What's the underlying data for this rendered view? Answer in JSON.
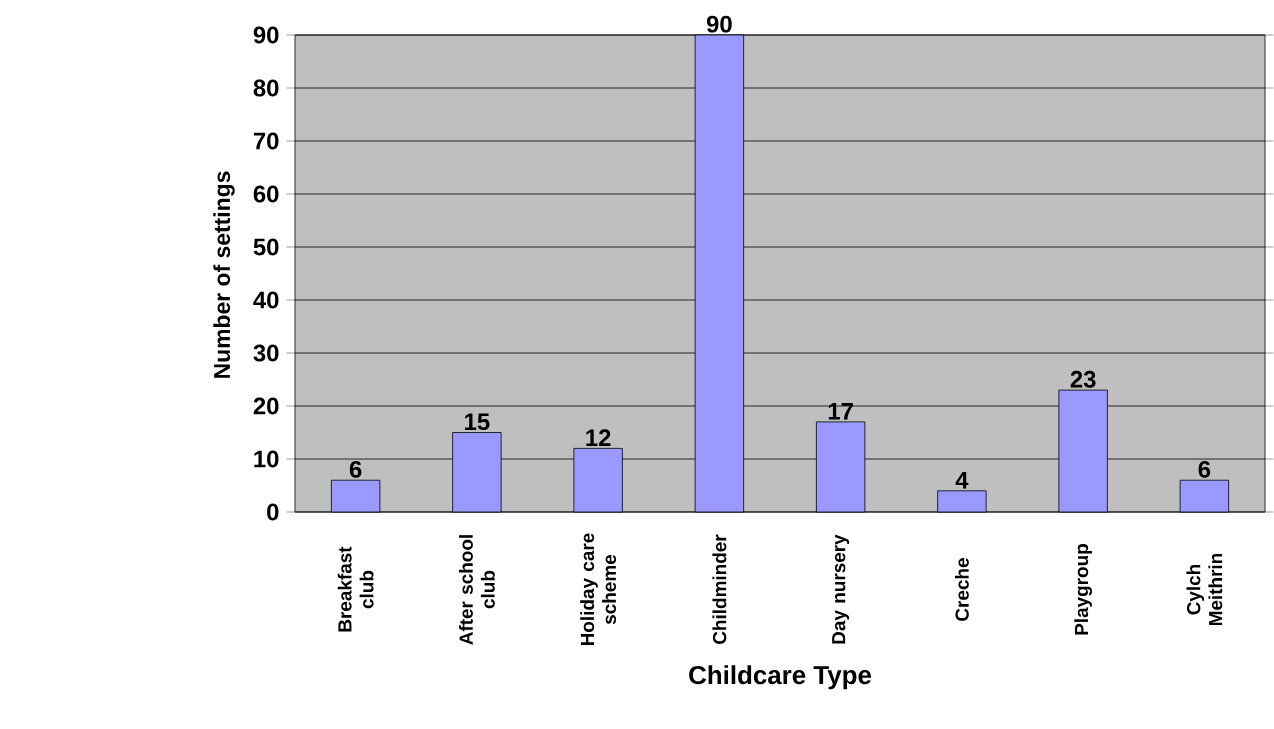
{
  "chart_data": {
    "type": "bar",
    "xlabel": "Childcare Type",
    "ylabel": "Number of settings",
    "categories": [
      "Breakfast club",
      "After school club",
      "Holiday care scheme",
      "Childminder",
      "Day nursery",
      "Creche",
      "Playgroup",
      "Cylch Meithrin"
    ],
    "values": [
      6,
      15,
      12,
      90,
      17,
      4,
      23,
      6
    ],
    "color": "#9999ff",
    "ylim": [
      0,
      90
    ],
    "yticks": [
      0,
      10,
      20,
      30,
      40,
      50,
      60,
      70,
      80,
      90
    ],
    "grid": "y",
    "data_labels": true
  }
}
